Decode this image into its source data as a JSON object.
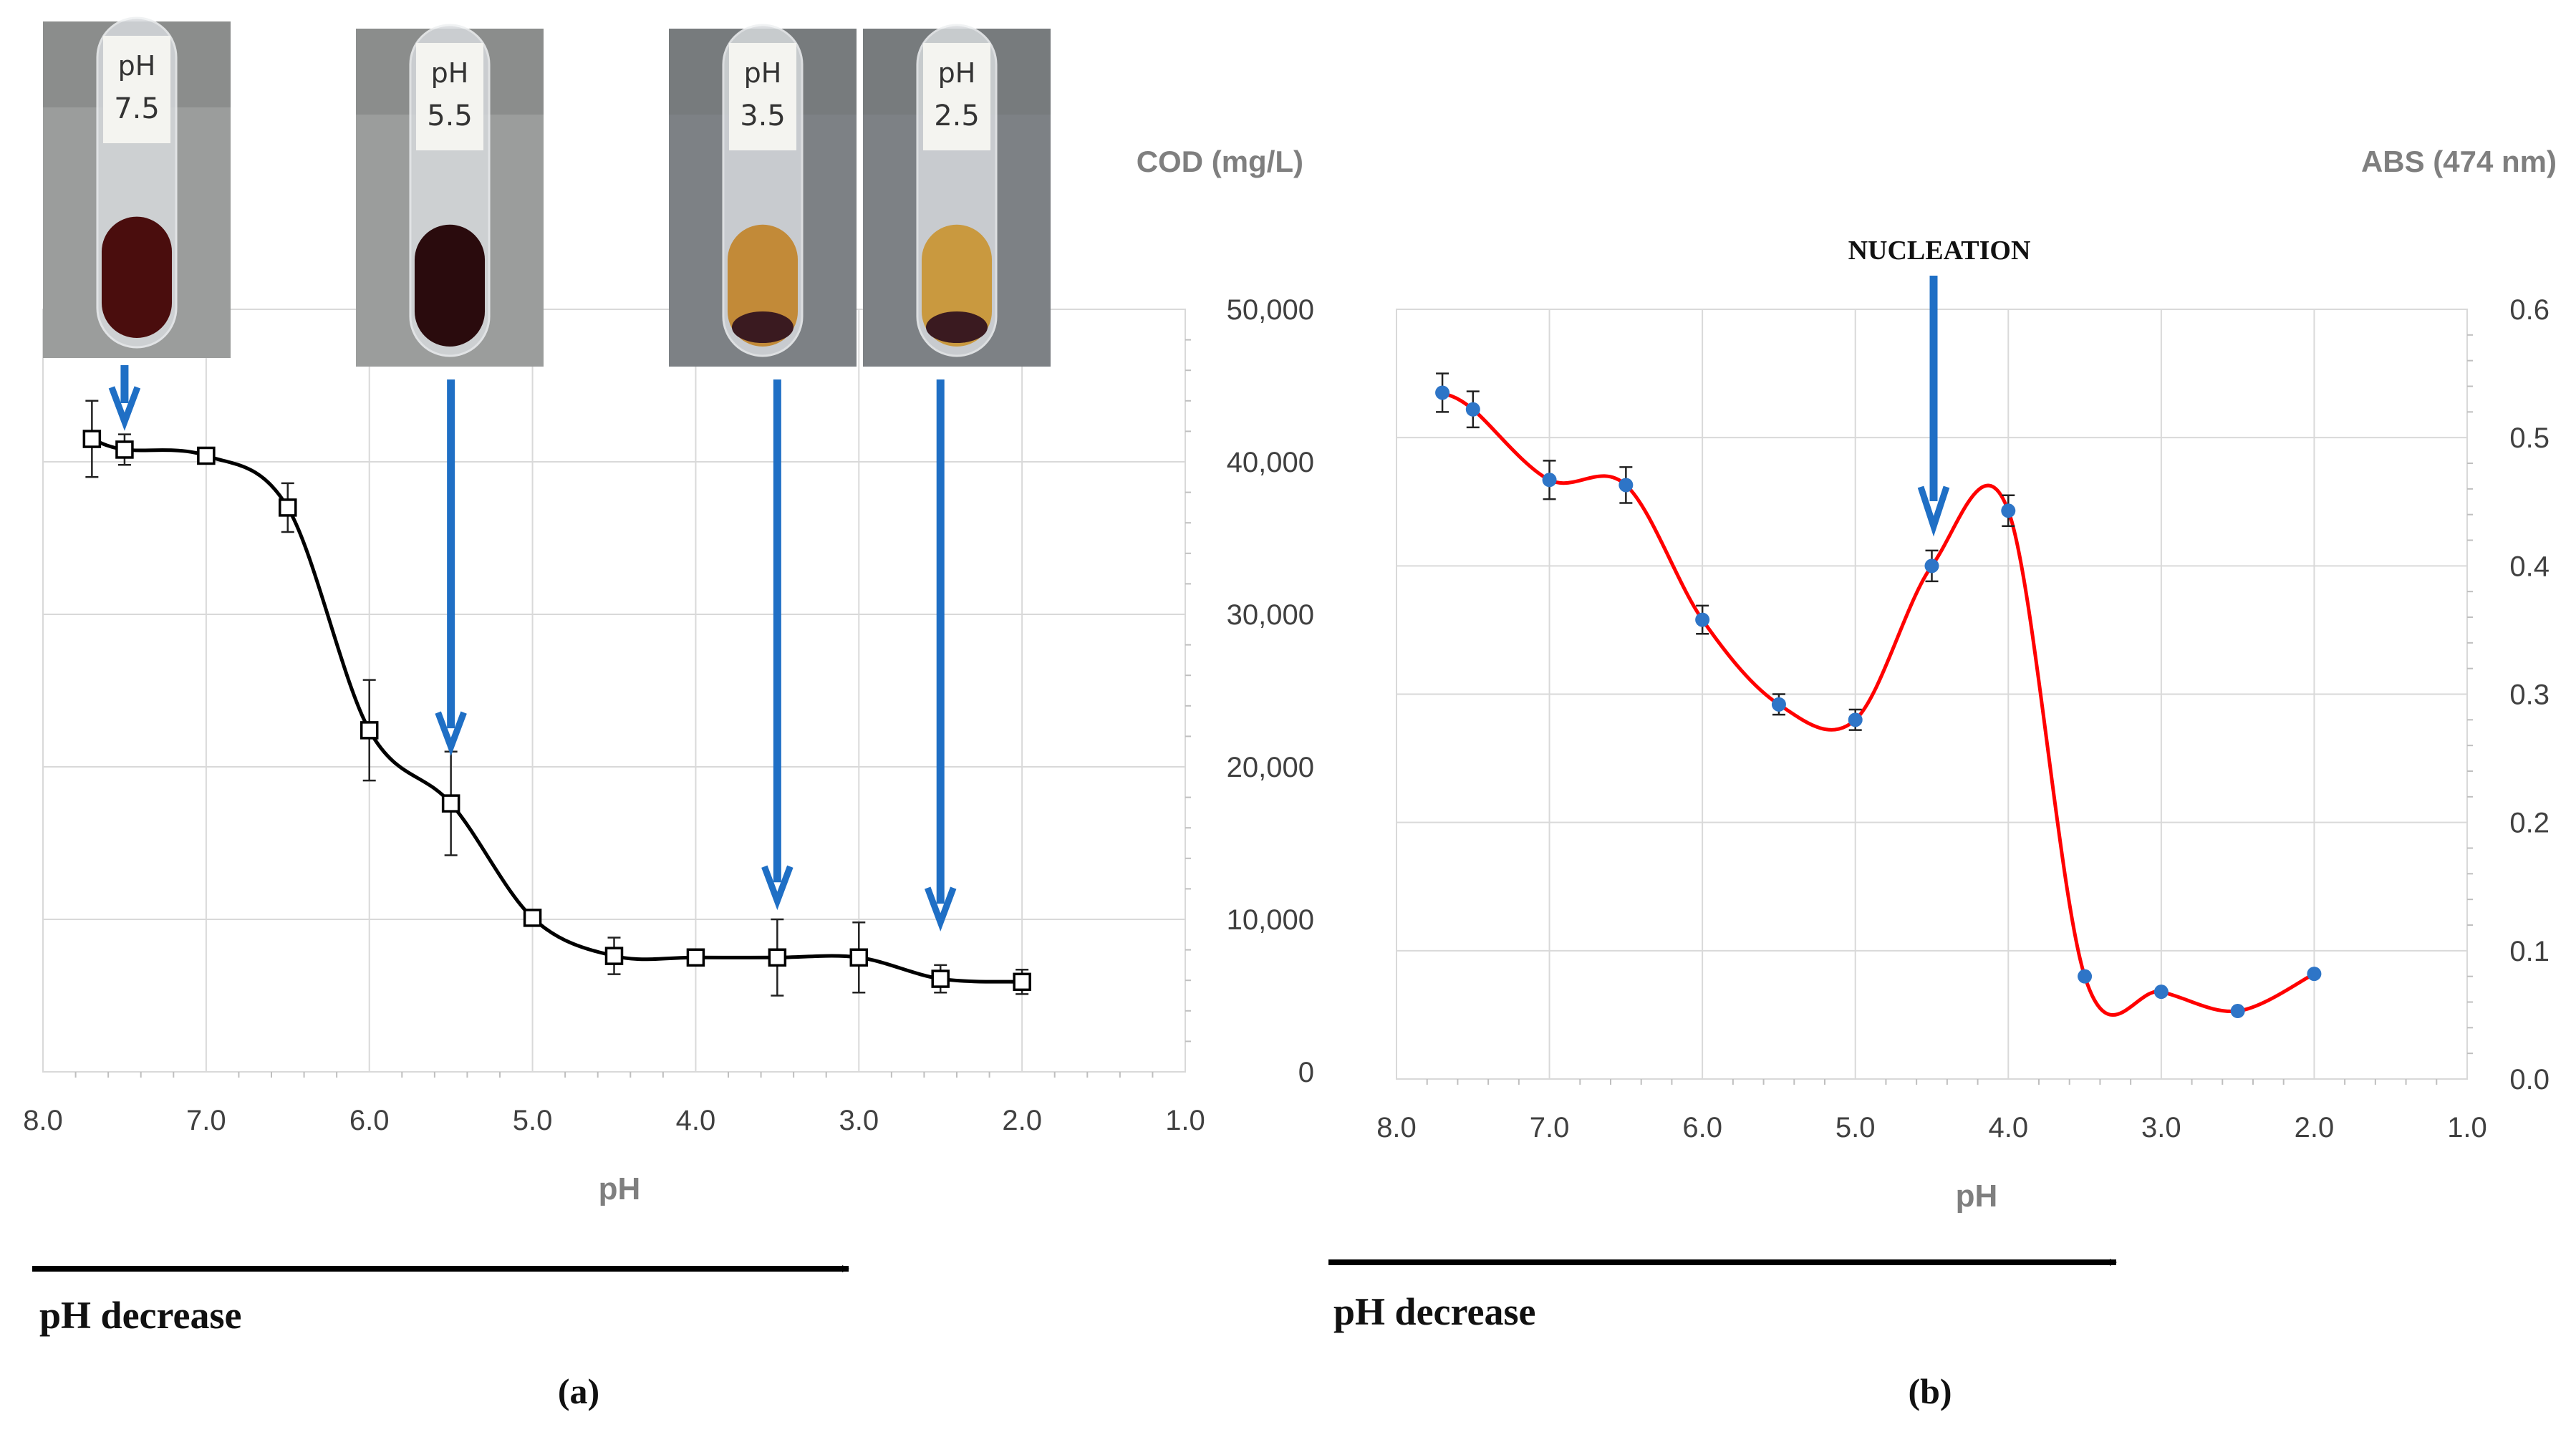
{
  "chart_data": [
    {
      "type": "line",
      "panel_label": "(a)",
      "ylabel": "COD (mg/L)",
      "xlabel": "pH",
      "xlim": [
        8.0,
        1.0
      ],
      "ylim": [
        0,
        50000
      ],
      "x_ticks": [
        "8.0",
        "7.0",
        "6.0",
        "5.0",
        "4.0",
        "3.0",
        "2.0",
        "1.0"
      ],
      "y_ticks": [
        "0",
        "10,000",
        "20,000",
        "30,000",
        "40,000",
        "50,000"
      ],
      "grid": true,
      "series": [
        {
          "marker": "open-square",
          "color": "#000000",
          "x": [
            7.7,
            7.5,
            7.0,
            6.5,
            6.0,
            5.5,
            5.0,
            4.5,
            4.0,
            3.5,
            3.0,
            2.5,
            2.0
          ],
          "y": [
            41500,
            40800,
            40400,
            37000,
            22400,
            17600,
            10100,
            7600,
            7500,
            7500,
            7500,
            6100,
            5900
          ],
          "error": [
            2500,
            1000,
            500,
            1600,
            3300,
            3400,
            0,
            1200,
            0,
            2500,
            2300,
            900,
            800
          ]
        }
      ],
      "annotations": [
        "pH decrease"
      ],
      "photos": [
        {
          "label_line1": "pH",
          "label_line2": "7.5",
          "liquid": "#4a0d0d",
          "ph": 7.5
        },
        {
          "label_line1": "pH",
          "label_line2": "5.5",
          "liquid": "#2a0b0d",
          "ph": 5.5
        },
        {
          "label_line1": "pH",
          "label_line2": "3.5",
          "liquid": "#c28a38",
          "ph": 3.5
        },
        {
          "label_line1": "pH",
          "label_line2": "2.5",
          "liquid": "#c9993f",
          "ph": 2.5
        }
      ]
    },
    {
      "type": "line",
      "panel_label": "(b)",
      "ylabel": "ABS (474 nm)",
      "xlabel": "pH",
      "xlim": [
        8.0,
        1.0
      ],
      "ylim": [
        0.0,
        0.6
      ],
      "x_ticks": [
        "8.0",
        "7.0",
        "6.0",
        "5.0",
        "4.0",
        "3.0",
        "2.0",
        "1.0"
      ],
      "y_ticks": [
        "0.0",
        "0.1",
        "0.2",
        "0.3",
        "0.4",
        "0.5",
        "0.6"
      ],
      "grid": true,
      "series": [
        {
          "marker": "dot",
          "color": "#ff0000",
          "marker_color": "#2e75c7",
          "x": [
            7.7,
            7.5,
            7.0,
            6.5,
            6.0,
            5.5,
            5.0,
            4.5,
            4.0,
            3.5,
            3.0,
            2.5,
            2.0
          ],
          "y": [
            0.535,
            0.522,
            0.467,
            0.463,
            0.358,
            0.292,
            0.28,
            0.4,
            0.443,
            0.08,
            0.068,
            0.053,
            0.082
          ],
          "error": [
            0.015,
            0.014,
            0.015,
            0.014,
            0.011,
            0.008,
            0.008,
            0.012,
            0.012,
            0,
            0,
            0,
            0
          ]
        }
      ],
      "annotations": [
        "NUCLEATION",
        "pH decrease"
      ]
    }
  ]
}
